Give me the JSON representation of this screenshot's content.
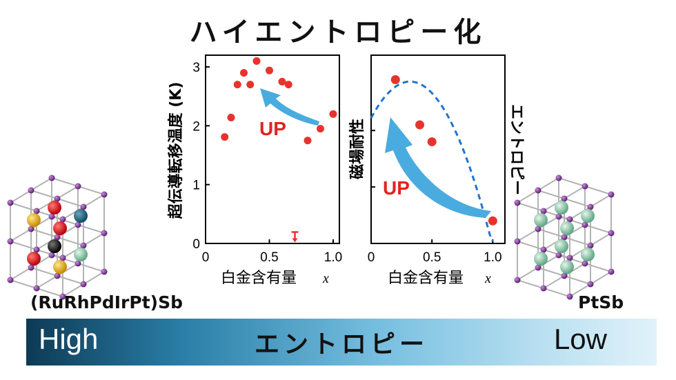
{
  "title": "ハイエントロピー化",
  "left_material": {
    "formula": "(RuRhPdIrPt)Sb"
  },
  "right_material": {
    "formula": "PtSb"
  },
  "entropy_bar": {
    "high_label": "High",
    "middle_label": "エントロピー",
    "low_label": "Low"
  },
  "colors": {
    "point": "#e8332d",
    "arrow": "#4aabdf",
    "dashed_curve": "#1e73d2",
    "up_text": "#e0241e"
  },
  "chart_data": [
    {
      "type": "scatter",
      "title": "",
      "xlabel": "白金含有量",
      "xlabel_var": "x",
      "ylabel": "超伝導転移温度 (K)",
      "xlim": [
        0,
        1.0
      ],
      "ylim": [
        0,
        3.2
      ],
      "xticks": [
        "0",
        "0.5",
        "1.0"
      ],
      "yticks": [
        "0",
        "1",
        "2",
        "3"
      ],
      "series": [
        {
          "x": [
            0.15,
            0.2,
            0.25,
            0.3,
            0.35,
            0.4,
            0.5,
            0.6,
            0.65,
            0.8,
            0.9,
            1.0
          ],
          "y": [
            1.81,
            2.14,
            2.7,
            2.9,
            2.7,
            3.1,
            2.94,
            2.75,
            2.7,
            1.75,
            1.95,
            2.2
          ]
        }
      ],
      "upper_limit_marker": {
        "x": 0.7,
        "y": 0.1
      },
      "annotation": "UP"
    },
    {
      "type": "scatter",
      "title": "",
      "xlabel": "白金含有量",
      "xlabel_var": "x",
      "ylabel": "磁場耐性",
      "ylabel_right": "エントロピー",
      "xlim": [
        0,
        1.1
      ],
      "ylim": [
        0,
        1
      ],
      "xticks": [
        "0",
        "0.5",
        "1.0"
      ],
      "series": [
        {
          "x": [
            0.2,
            0.4,
            0.5,
            1.0
          ],
          "y": [
            0.87,
            0.63,
            0.54,
            0.12
          ]
        }
      ],
      "trend_curve": "dashed",
      "annotation": "UP"
    }
  ]
}
